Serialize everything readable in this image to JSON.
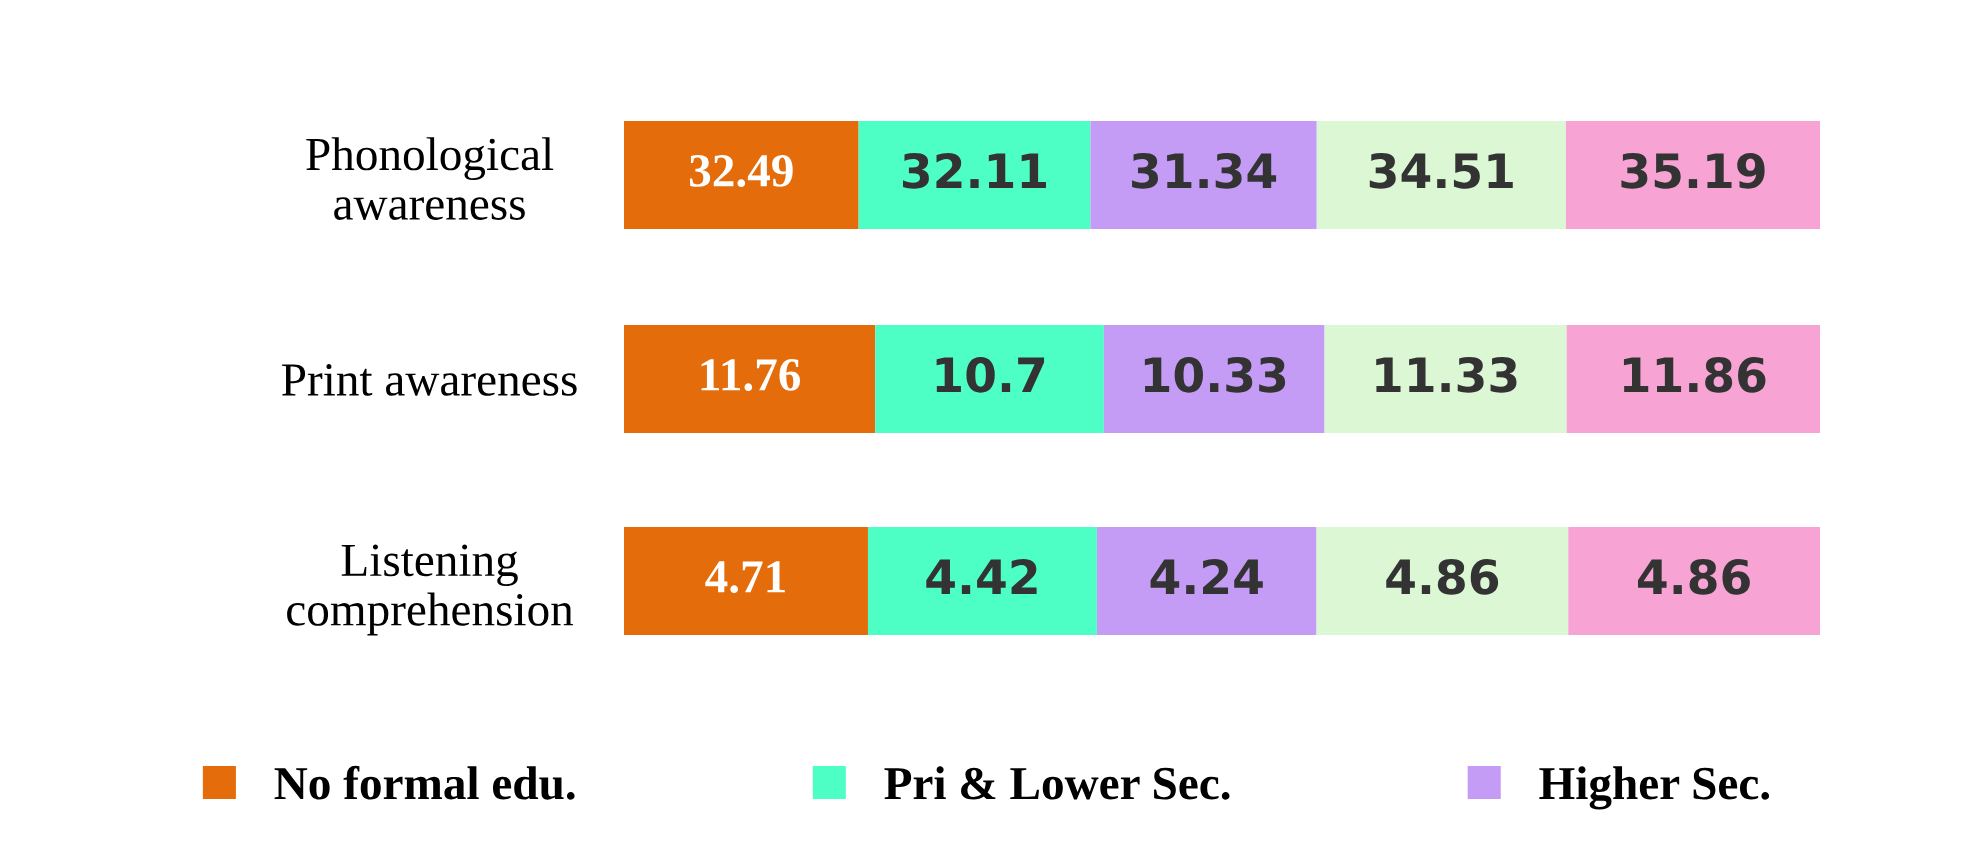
{
  "chart_data": [
    {
      "type": "bar",
      "orientation": "horizontal",
      "stacked": true,
      "data_labels": true,
      "tick_labels": "y",
      "legend": "bottom",
      "categories": [
        "Phonological\nawareness"
      ],
      "series": [
        {
          "name": "No formal edu.",
          "color": "#e46c0a",
          "values": [
            32.49
          ]
        },
        {
          "name": "Pri & Lower Sec.",
          "color": "#4dffc4",
          "values": [
            32.11
          ]
        },
        {
          "name": "Higher Sec.",
          "color": "#c49cf5",
          "values": [
            31.34
          ]
        },
        {
          "color": "#dcf7d4",
          "values": [
            34.51
          ]
        },
        {
          "color": "#f7a3d3",
          "values": [
            35.19
          ]
        }
      ]
    },
    {
      "type": "bar",
      "orientation": "horizontal",
      "stacked": true,
      "data_labels": true,
      "tick_labels": "y",
      "categories": [
        "Print awareness"
      ],
      "series": [
        {
          "color": "#e46c0a",
          "values": [
            11.76
          ]
        },
        {
          "color": "#4dffc4",
          "values": [
            10.7
          ]
        },
        {
          "color": "#c49cf5",
          "values": [
            10.33
          ]
        },
        {
          "color": "#dcf7d4",
          "values": [
            11.33
          ]
        },
        {
          "color": "#f7a3d3",
          "values": [
            11.86
          ]
        }
      ]
    },
    {
      "type": "bar",
      "orientation": "horizontal",
      "stacked": true,
      "data_labels": true,
      "tick_labels": "y",
      "categories": [
        "Listening\ncomprehension"
      ],
      "series": [
        {
          "color": "#e46c0a",
          "values": [
            4.71
          ]
        },
        {
          "color": "#4dffc4",
          "values": [
            4.42
          ]
        },
        {
          "color": "#c49cf5",
          "values": [
            4.24
          ]
        },
        {
          "color": "#dcf7d4",
          "values": [
            4.86
          ]
        },
        {
          "color": "#f7a3d3",
          "values": [
            4.86
          ]
        }
      ]
    }
  ]
}
